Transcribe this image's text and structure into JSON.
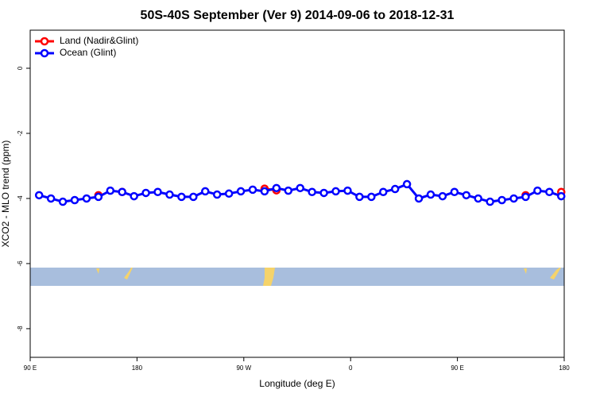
{
  "chart_data": {
    "type": "line",
    "title": "50S-40S September (Ver 9)   2014-09-06 to 2018-12-31",
    "x_label": "Longitude (deg E)",
    "y_label": "XCO2 - MLO trend (ppm)",
    "x": [
      97.5,
      107.5,
      117.5,
      127.5,
      137.5,
      147.5,
      157.5,
      167.5,
      177.5,
      187.5,
      197.5,
      207.5,
      217.5,
      227.5,
      237.5,
      247.5,
      257.5,
      267.5,
      277.5,
      287.5,
      297.5,
      307.5,
      317.5,
      327.5,
      337.5,
      347.5,
      357.5,
      367.5,
      377.5,
      387.5,
      397.5,
      407.5,
      417.5,
      427.5,
      437.5,
      447.5,
      457.5,
      467.5,
      477.5,
      487.5,
      497.5,
      507.5,
      517.5,
      527.5,
      537.5
    ],
    "series": [
      {
        "name": "Land (Nadir&Glint)",
        "color": "#ff0000",
        "values": [
          null,
          null,
          null,
          null,
          null,
          -3.9,
          null,
          -3.8,
          null,
          null,
          null,
          null,
          null,
          null,
          null,
          null,
          null,
          null,
          null,
          -3.7,
          -3.75,
          null,
          null,
          null,
          null,
          null,
          null,
          null,
          null,
          null,
          null,
          null,
          null,
          null,
          null,
          null,
          null,
          null,
          null,
          null,
          null,
          -3.9,
          null,
          null,
          -3.8
        ]
      },
      {
        "name": "Ocean (Glint)",
        "color": "#0000ff",
        "values": [
          -3.9,
          -4.0,
          -4.1,
          -4.05,
          -4.0,
          -3.95,
          -3.76,
          -3.8,
          -3.93,
          -3.83,
          -3.8,
          -3.88,
          -3.95,
          -3.95,
          -3.78,
          -3.88,
          -3.85,
          -3.78,
          -3.73,
          -3.78,
          -3.68,
          -3.76,
          -3.68,
          -3.8,
          -3.83,
          -3.78,
          -3.76,
          -3.95,
          -3.95,
          -3.8,
          -3.71,
          -3.56,
          -4.0,
          -3.88,
          -3.93,
          -3.8,
          -3.9,
          -4.0,
          -4.1,
          -4.05,
          -4.0,
          -3.95,
          -3.76,
          -3.8,
          -3.93
        ]
      }
    ],
    "xlim": [
      90,
      540
    ],
    "ylim": [
      -8.88,
      1.17
    ],
    "xticks": [
      {
        "value": 90,
        "label": "90 E"
      },
      {
        "value": 180,
        "label": "180"
      },
      {
        "value": 270,
        "label": "90 W"
      },
      {
        "value": 360,
        "label": "0"
      },
      {
        "value": 450,
        "label": "90 E"
      },
      {
        "value": 540,
        "label": "180"
      }
    ],
    "yticks": [
      -8,
      -6,
      -4,
      -2,
      0
    ],
    "legend": "top-left"
  }
}
